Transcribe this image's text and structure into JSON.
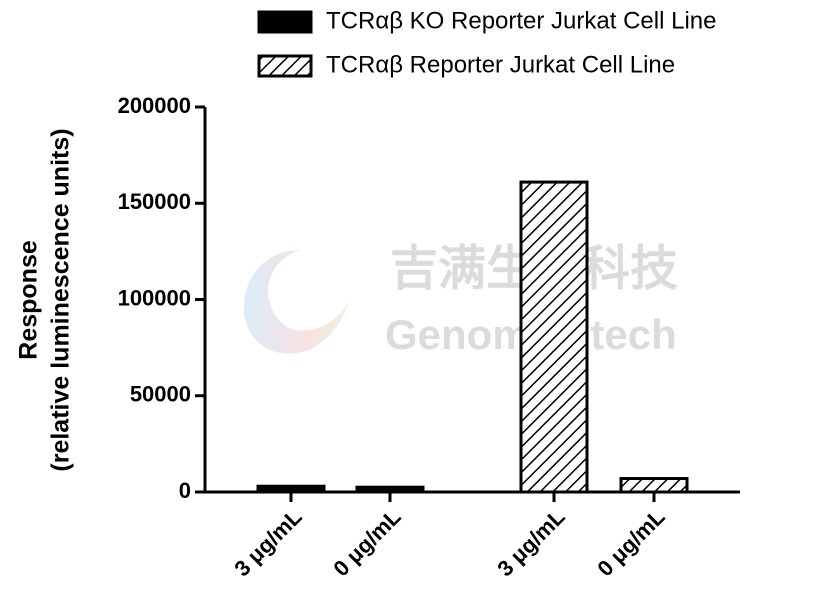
{
  "chart_data": {
    "type": "bar",
    "ylabel": [
      "Response",
      "(relative luminescence units)"
    ],
    "categories": [
      "3 μg/mL",
      "0 μg/mL",
      "3 μg/mL",
      "0 μg/mL"
    ],
    "series": [
      {
        "name": "TCRαβ KO Reporter Jurkat Cell Line",
        "color": "#000000",
        "hatch": false,
        "values": [
          3000,
          2500,
          null,
          null
        ]
      },
      {
        "name": "TCRαβ Reporter Jurkat Cell Line",
        "color": "#000000",
        "hatch": true,
        "values": [
          null,
          null,
          161000,
          7000
        ]
      }
    ],
    "ylim": [
      0,
      200000
    ],
    "yticks": [
      0,
      50000,
      100000,
      150000,
      200000
    ],
    "watermark": [
      "吉满生物科技",
      "Genomeditech"
    ]
  }
}
